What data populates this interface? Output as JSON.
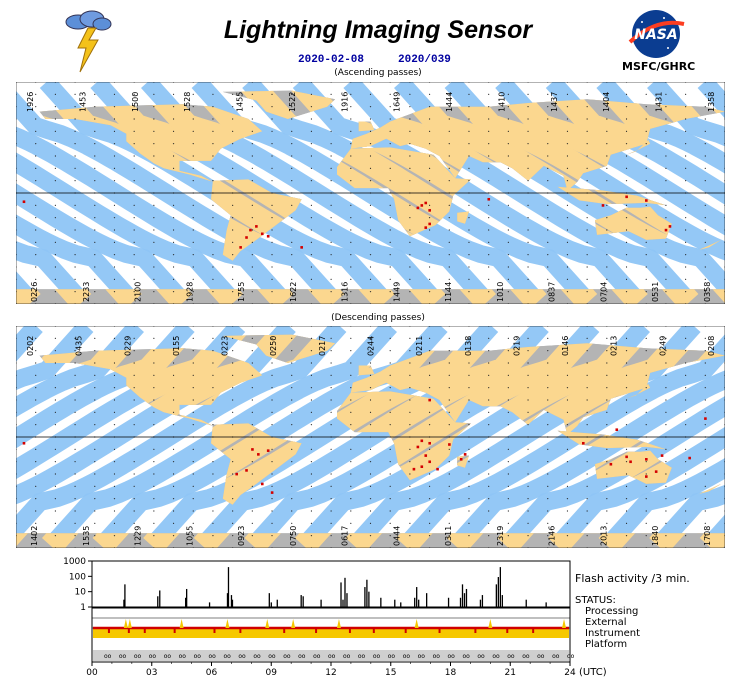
{
  "header": {
    "title": "Lightning Imaging Sensor",
    "date": "2020-02-08",
    "doy": "2020/039",
    "org": "MSFC/GHRC",
    "nasa": "NASA"
  },
  "colors": {
    "swath": "#8ec5f5",
    "day": "#fbd78f",
    "night": "#b4b4b4",
    "flash": "#d40000",
    "ocean": "#ffffff"
  },
  "maps": [
    {
      "label": "(Ascending passes)",
      "top_times": [
        "1926",
        "1453",
        "1500",
        "1528",
        "1455",
        "1522",
        "1916",
        "1649",
        "1444",
        "1410",
        "1437",
        "1404",
        "1431",
        "1358"
      ],
      "bottom_times": [
        "0226",
        "2233",
        "2100",
        "1928",
        "1755",
        "1622",
        "1316",
        "1449",
        "1144",
        "1010",
        "0837",
        "0704",
        "0531",
        "0358"
      ],
      "flashes": [
        [
          -176,
          -7
        ],
        [
          -63,
          -36
        ],
        [
          -61,
          -30
        ],
        [
          -58,
          -27
        ],
        [
          -55,
          -33
        ],
        [
          -52,
          -35
        ],
        [
          -66,
          -44
        ],
        [
          26,
          -10
        ],
        [
          28,
          -8
        ],
        [
          24,
          -12
        ],
        [
          30,
          -14
        ],
        [
          28,
          -28
        ],
        [
          30,
          -25
        ],
        [
          60,
          -5
        ],
        [
          152,
          -27
        ],
        [
          150,
          -30
        ],
        [
          118,
          -10
        ],
        [
          130,
          -3
        ],
        [
          140,
          -6
        ],
        [
          -35,
          -44
        ]
      ]
    },
    {
      "label": "(Descending passes)",
      "top_times": [
        "0202",
        "0435",
        "0229",
        "0155",
        "0223",
        "0250",
        "0217",
        "0244",
        "0211",
        "0138",
        "0219",
        "0146",
        "0213",
        "0249",
        "0208"
      ],
      "bottom_times": [
        "1402",
        "1535",
        "1229",
        "1055",
        "0923",
        "0750",
        "0617",
        "0444",
        "0311",
        "2319",
        "2146",
        "2013",
        "1840",
        "1708"
      ],
      "flashes": [
        [
          -60,
          -10
        ],
        [
          -57,
          -14
        ],
        [
          -52,
          -11
        ],
        [
          -63,
          -27
        ],
        [
          -68,
          -30
        ],
        [
          -55,
          -38
        ],
        [
          -50,
          -45
        ],
        [
          -176,
          -5
        ],
        [
          24,
          -8
        ],
        [
          26,
          -3
        ],
        [
          30,
          -5
        ],
        [
          28,
          -15
        ],
        [
          30,
          -20
        ],
        [
          26,
          -24
        ],
        [
          34,
          -26
        ],
        [
          46,
          -18
        ],
        [
          48,
          -14
        ],
        [
          40,
          -6
        ],
        [
          22,
          -26
        ],
        [
          130,
          -16
        ],
        [
          132,
          -20
        ],
        [
          140,
          -18
        ],
        [
          145,
          -28
        ],
        [
          140,
          -32
        ],
        [
          148,
          -15
        ],
        [
          122,
          -22
        ],
        [
          108,
          -5
        ],
        [
          125,
          6
        ],
        [
          162,
          -17
        ],
        [
          170,
          15
        ],
        [
          30,
          30
        ]
      ]
    }
  ],
  "chart_data": {
    "type": "bar",
    "title": "Flash activity /3 min.",
    "ylabel": "",
    "xlabel": "(UTC)",
    "y_scale": "log",
    "ylim": [
      1,
      1000
    ],
    "y_ticks": [
      "1000",
      "100",
      "10",
      "1"
    ],
    "x_ticks": [
      "00",
      "03",
      "06",
      "09",
      "12",
      "15",
      "18",
      "21",
      "24"
    ],
    "xlim": [
      0,
      24
    ],
    "x": [
      1.6,
      1.65,
      3.3,
      3.4,
      4.7,
      4.75,
      5.9,
      6.8,
      6.85,
      7.0,
      7.05,
      8.9,
      9.0,
      9.3,
      10.5,
      10.6,
      11.5,
      12.5,
      12.6,
      12.7,
      12.8,
      13.7,
      13.8,
      13.9,
      14.5,
      15.2,
      15.5,
      16.2,
      16.3,
      16.4,
      16.8,
      17.9,
      18.5,
      18.6,
      18.7,
      18.8,
      19.5,
      19.6,
      20.3,
      20.4,
      20.5,
      20.6,
      21.8,
      22.8
    ],
    "values": [
      3,
      30,
      5,
      12,
      4,
      15,
      2,
      8,
      400,
      6,
      3,
      8,
      2,
      3,
      6,
      5,
      3,
      40,
      3,
      80,
      8,
      20,
      60,
      10,
      4,
      3,
      2,
      4,
      20,
      3,
      8,
      4,
      4,
      30,
      8,
      15,
      3,
      6,
      30,
      90,
      400,
      6,
      3,
      2
    ],
    "status_label": "STATUS:",
    "status_rows": [
      "Processing",
      "External",
      "Instrument",
      "Platform"
    ],
    "annotation": "(UTC)"
  }
}
